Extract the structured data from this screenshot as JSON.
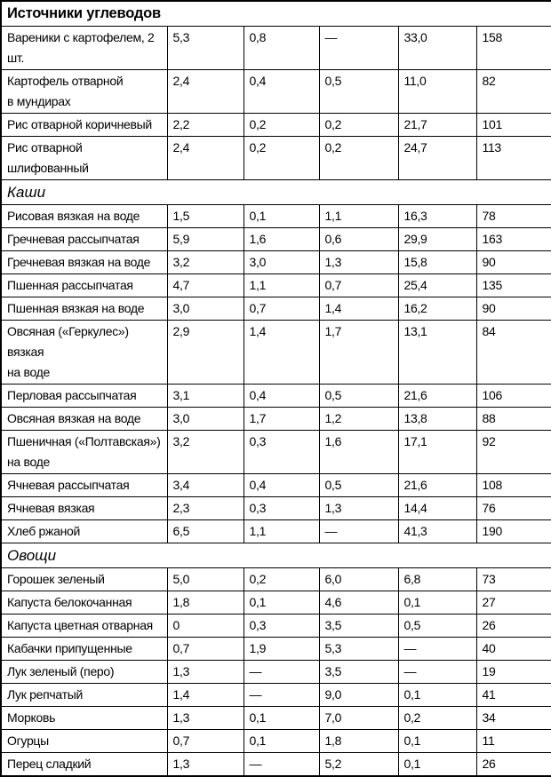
{
  "document": {
    "language": "ru",
    "title": "Источники углеводов",
    "colors": {
      "text": "#000000",
      "background": "#ffffff",
      "border": "#000000"
    },
    "missing_value_symbol": "—"
  },
  "table": {
    "column_count": 6,
    "sections": [
      {
        "label": "Источники углеводов",
        "style": "bold",
        "rows": [
          {
            "name": "Вареники с картофелем, 2 шт.",
            "values": [
              "5,3",
              "0,8",
              "—",
              "33,0",
              "158"
            ]
          },
          {
            "name": "Картофель отварной\nв мундирах",
            "values": [
              "2,4",
              "0,4",
              "0,5",
              "11,0",
              "82"
            ]
          },
          {
            "name": "Рис отварной коричневый",
            "values": [
              "2,2",
              "0,2",
              "0,2",
              "21,7",
              "101"
            ]
          },
          {
            "name": "Рис отварной шлифованный",
            "values": [
              "2,4",
              "0,2",
              "0,2",
              "24,7",
              "113"
            ]
          }
        ]
      },
      {
        "label": "Каши",
        "style": "italic",
        "rows": [
          {
            "name": "Рисовая вязкая на воде",
            "values": [
              "1,5",
              "0,1",
              "1,1",
              "16,3",
              "78"
            ]
          },
          {
            "name": "Гречневая рассыпчатая",
            "values": [
              "5,9",
              "1,6",
              "0,6",
              "29,9",
              "163"
            ]
          },
          {
            "name": "Гречневая вязкая на воде",
            "values": [
              "3,2",
              "3,0",
              "1,3",
              "15,8",
              "90"
            ]
          },
          {
            "name": "Пшенная рассыпчатая",
            "values": [
              "4,7",
              "1,1",
              "0,7",
              "25,4",
              "135"
            ]
          },
          {
            "name": "Пшенная вязкая на воде",
            "values": [
              "3,0",
              "0,7",
              "1,4",
              "16,2",
              "90"
            ]
          },
          {
            "name": "Овсяная («Геркулес») вязкая\nна воде",
            "values": [
              "2,9",
              "1,4",
              "1,7",
              "13,1",
              "84"
            ]
          },
          {
            "name": "Перловая рассыпчатая",
            "values": [
              "3,1",
              "0,4",
              "0,5",
              "21,6",
              "106"
            ]
          },
          {
            "name": "Овсяная вязкая на воде",
            "values": [
              "3,0",
              "1,7",
              "1,2",
              "13,8",
              "88"
            ]
          },
          {
            "name": "Пшеничная («Полтавская»)\nна воде",
            "values": [
              "3,2",
              "0,3",
              "1,6",
              "17,1",
              "92"
            ]
          },
          {
            "name": "Ячневая рассыпчатая",
            "values": [
              "3,4",
              "0,4",
              "0,5",
              "21,6",
              "108"
            ]
          },
          {
            "name": "Ячневая вязкая",
            "values": [
              "2,3",
              "0,3",
              "1,3",
              "14,4",
              "76"
            ]
          },
          {
            "name": "Хлеб ржаной",
            "values": [
              "6,5",
              "1,1",
              "—",
              "41,3",
              "190"
            ]
          }
        ]
      },
      {
        "label": "Овощи",
        "style": "italic",
        "rows": [
          {
            "name": "Горошек зеленый",
            "values": [
              "5,0",
              "0,2",
              "6,0",
              "6,8",
              "73"
            ]
          },
          {
            "name": "Капуста белокочанная",
            "values": [
              "1,8",
              "0,1",
              "4,6",
              "0,1",
              "27"
            ]
          },
          {
            "name": "Капуста цветная отварная",
            "values": [
              "0",
              "0,3",
              "3,5",
              "0,5",
              "26"
            ]
          },
          {
            "name": "Кабачки припущенные",
            "values": [
              "0,7",
              "1,9",
              "5,3",
              "—",
              "40"
            ]
          },
          {
            "name": "Лук зеленый (перо)",
            "values": [
              "1,3",
              "—",
              "3,5",
              "—",
              "19"
            ]
          },
          {
            "name": "Лук репчатый",
            "values": [
              "1,4",
              "—",
              "9,0",
              "0,1",
              "41"
            ]
          },
          {
            "name": "Морковь",
            "values": [
              "1,3",
              "0,1",
              "7,0",
              "0,2",
              "34"
            ]
          },
          {
            "name": "Огурцы",
            "values": [
              "0,7",
              "0,1",
              "1,8",
              "0,1",
              "11"
            ]
          },
          {
            "name": "Перец сладкий",
            "values": [
              "1,3",
              "—",
              "5,2",
              "0,1",
              "26"
            ]
          }
        ]
      }
    ]
  }
}
